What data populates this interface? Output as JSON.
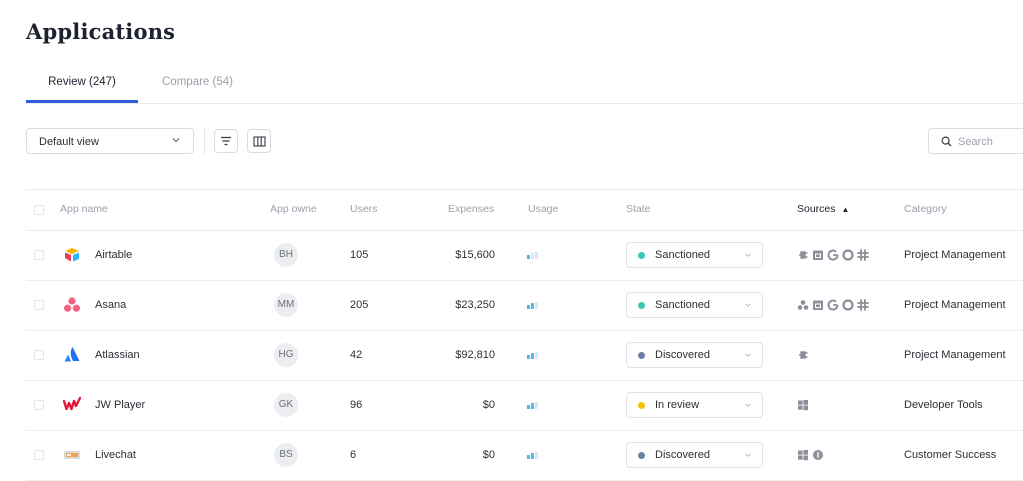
{
  "page": {
    "title": "Applications"
  },
  "tabs": [
    {
      "label": "Review (247)",
      "active": true
    },
    {
      "label": "Compare (54)",
      "active": false
    }
  ],
  "toolbar": {
    "view_label": "Default view",
    "filter_icon": "filter-icon",
    "columns_icon": "columns-icon",
    "search_placeholder": "Search"
  },
  "table": {
    "columns": {
      "app_name": "App name",
      "app_owner": "App owne",
      "users": "Users",
      "expenses": "Expenses",
      "usage": "Usage",
      "state": "State",
      "sources": "Sources",
      "sources_sort": "▲",
      "category": "Category"
    },
    "rows": [
      {
        "name": "Airtable",
        "logo": "airtable-logo",
        "owner": "BH",
        "users": "105",
        "expenses": "$15,600",
        "usage_level": 1,
        "state": "Sanctioned",
        "state_color": "#3ec8b9",
        "sources": [
          "plug-icon",
          "calendar-icon",
          "google-icon",
          "circle-icon",
          "slack-icon"
        ],
        "category": "Project Management"
      },
      {
        "name": "Asana",
        "logo": "asana-logo",
        "owner": "MM",
        "users": "205",
        "expenses": "$23,250",
        "usage_level": 2,
        "state": "Sanctioned",
        "state_color": "#3ec8b9",
        "sources": [
          "asana-icon",
          "calendar-icon",
          "google-icon",
          "circle-icon",
          "slack-icon"
        ],
        "category": "Project Management"
      },
      {
        "name": "Atlassian",
        "logo": "atlassian-logo",
        "owner": "HG",
        "users": "42",
        "expenses": "$92,810",
        "usage_level": 2,
        "state": "Discovered",
        "state_color": "#6b7fa8",
        "sources": [
          "plug-icon"
        ],
        "category": "Project Management"
      },
      {
        "name": "JW Player",
        "logo": "jwplayer-logo",
        "owner": "GK",
        "users": "96",
        "expenses": "$0",
        "usage_level": 2,
        "state": "In review",
        "state_color": "#f2c500",
        "sources": [
          "windows-icon"
        ],
        "category": "Developer Tools"
      },
      {
        "name": "Livechat",
        "logo": "livechat-logo",
        "owner": "BS",
        "users": "6",
        "expenses": "$0",
        "usage_level": 2,
        "state": "Discovered",
        "state_color": "#6b7fa8",
        "sources": [
          "windows-icon",
          "info-circle-icon"
        ],
        "category": "Customer Success"
      }
    ]
  },
  "colors": {
    "accent": "#2f5ed8",
    "usage_on": "#5ab8e8",
    "usage_off": "#d5e8f4",
    "source_icon": "#8a8f98"
  }
}
